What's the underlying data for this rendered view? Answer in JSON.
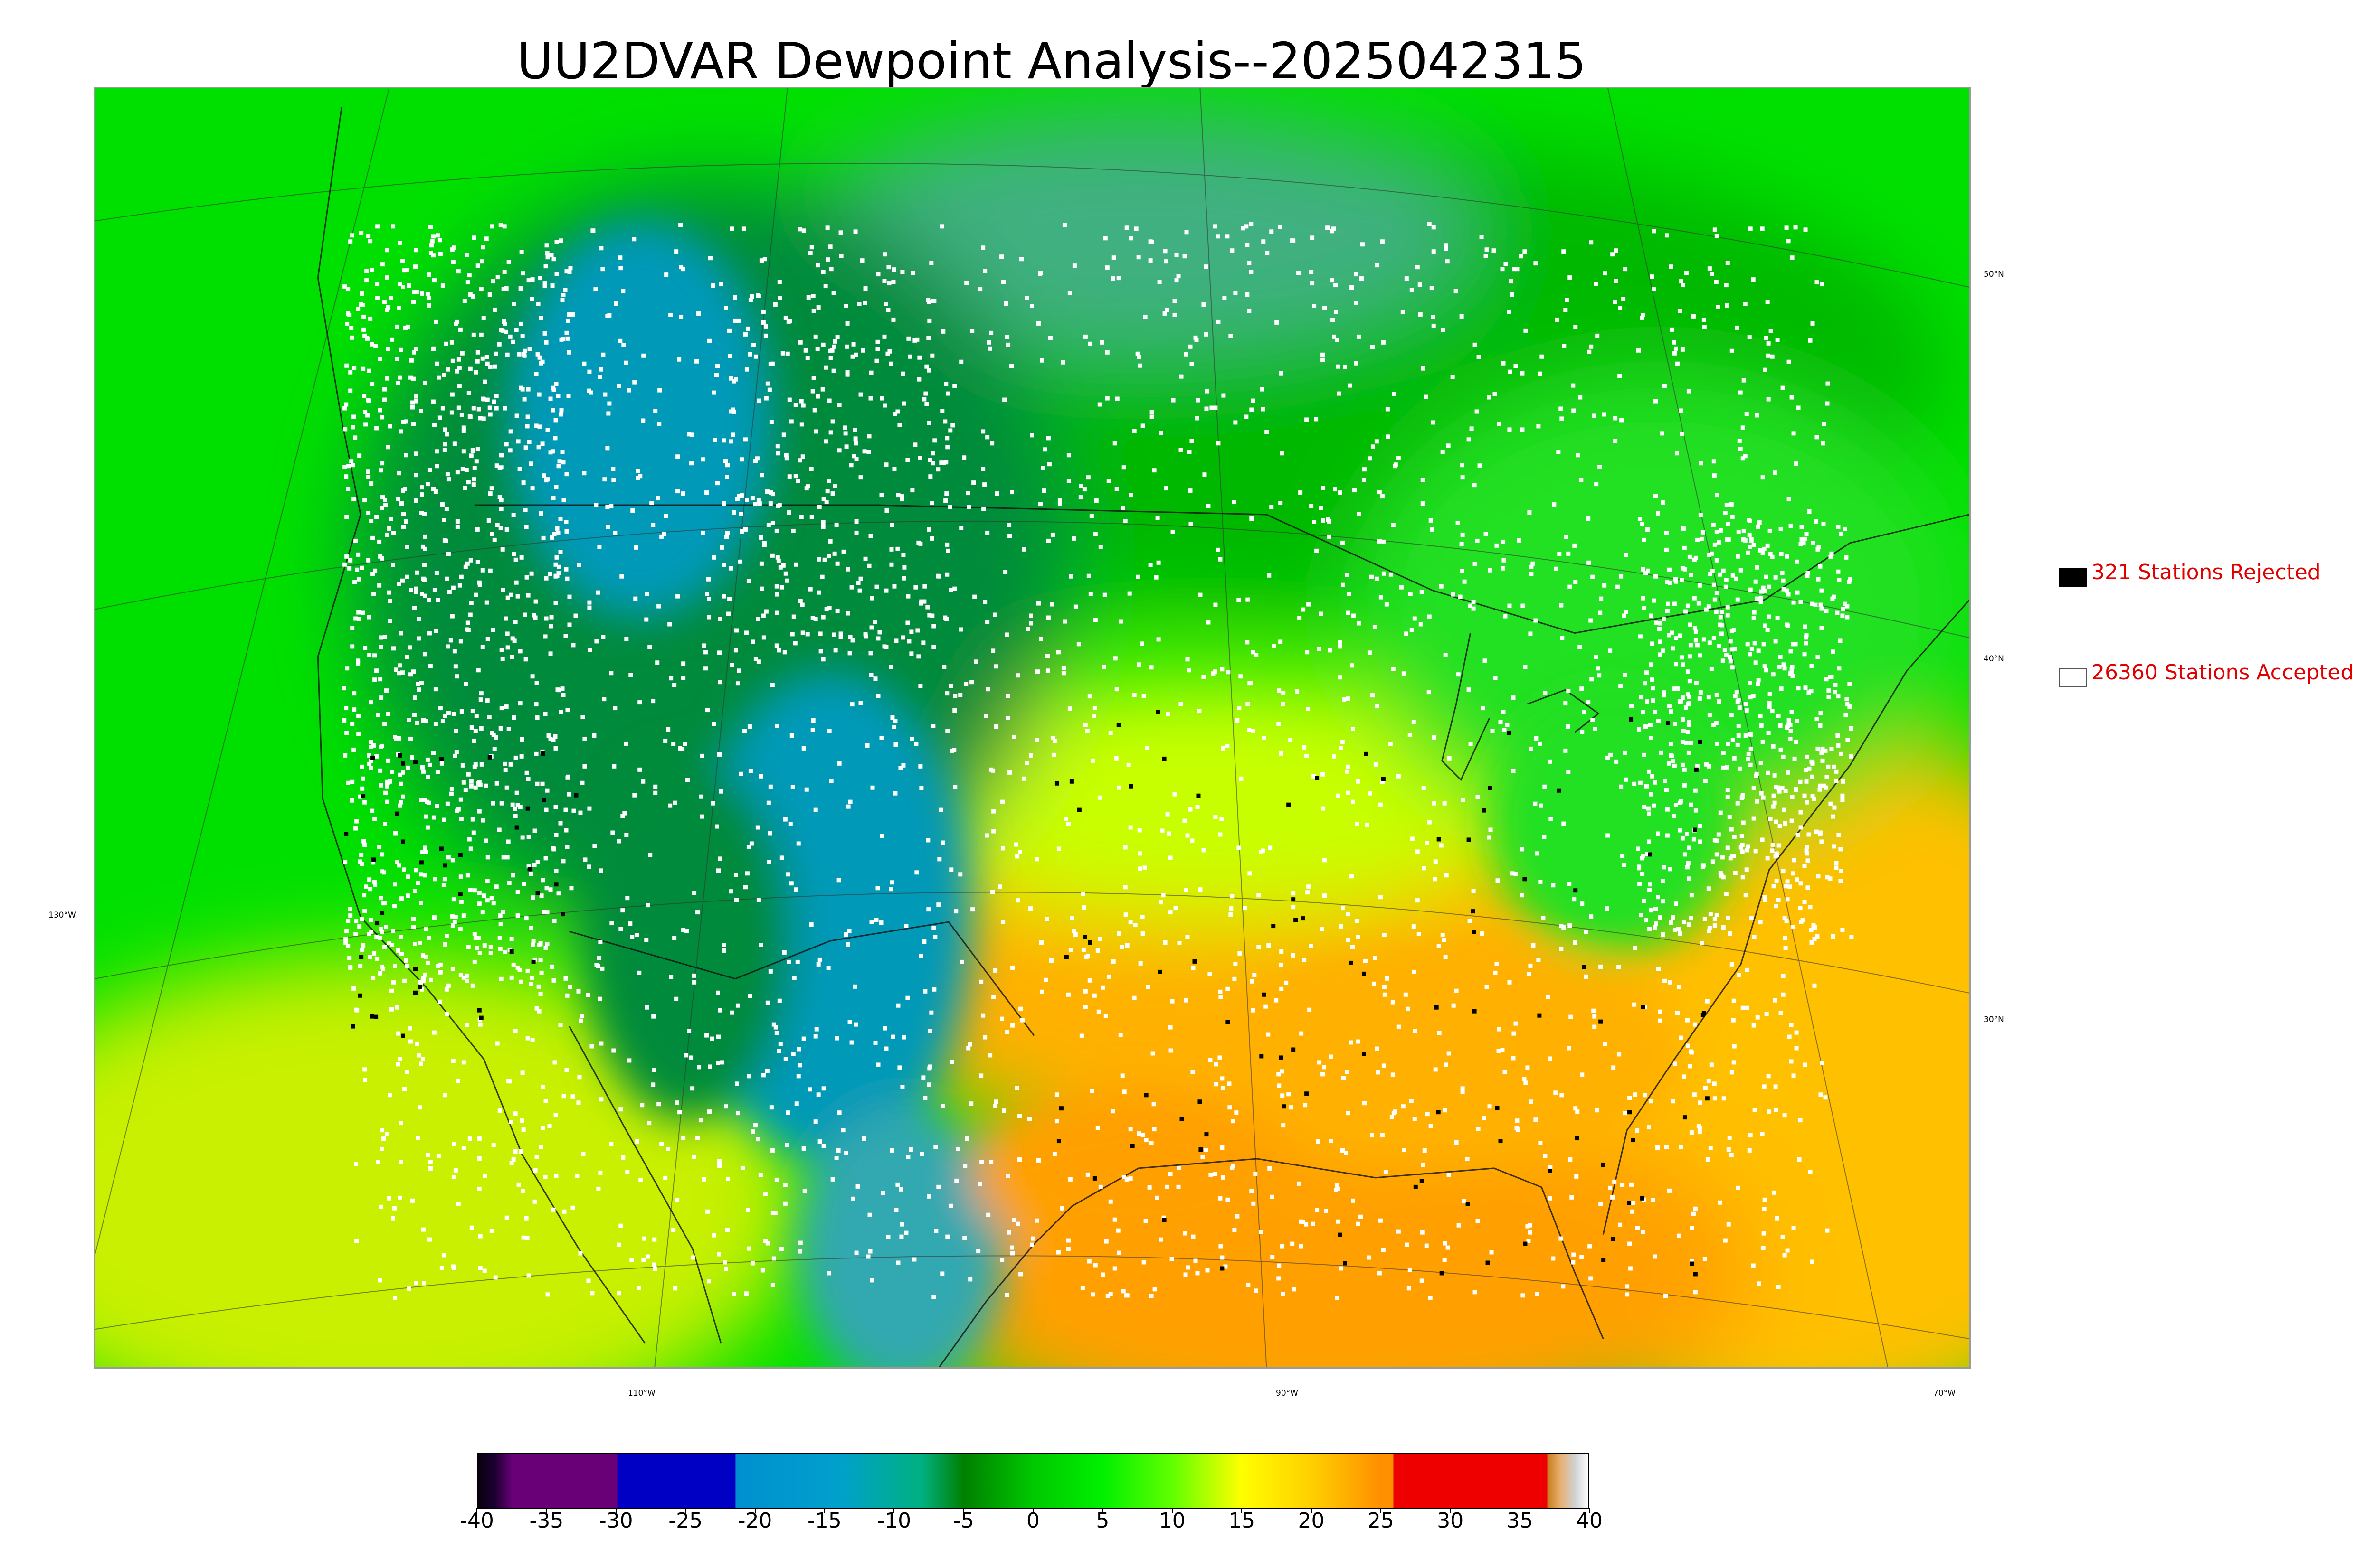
{
  "title": "UU2DVAR Dewpoint Analysis--2025042315",
  "graticule": {
    "lat_labels": [
      "50°N",
      "40°N",
      "30°N"
    ],
    "lon_labels_left": [
      "130°W"
    ],
    "lon_labels_bottom": [
      "110°W",
      "90°W",
      "70°W"
    ]
  },
  "legend": {
    "rejected": {
      "count": "321",
      "label": "321 Stations Rejected",
      "color": "#000000"
    },
    "accepted": {
      "count": "26360",
      "label": "26360 Stations Accepted",
      "color": "#ffffff"
    }
  },
  "colorbar": {
    "ticks": [
      "-40",
      "-35",
      "-30",
      "-25",
      "-20",
      "-15",
      "-10",
      "-5",
      "0",
      "5",
      "10",
      "15",
      "20",
      "25",
      "30",
      "35",
      "40"
    ],
    "min": -40,
    "max": 40,
    "stops": [
      {
        "v": -40,
        "c": "#0a0010"
      },
      {
        "v": -38.8,
        "c": "#1a0030"
      },
      {
        "v": -37.5,
        "c": "#6a0078"
      },
      {
        "v": -30,
        "c": "#6a0078"
      },
      {
        "v": -29.9,
        "c": "#0000c4"
      },
      {
        "v": -21.5,
        "c": "#0000c4"
      },
      {
        "v": -21.4,
        "c": "#0090d0"
      },
      {
        "v": -14,
        "c": "#00a0cc"
      },
      {
        "v": -8,
        "c": "#00b080"
      },
      {
        "v": -5,
        "c": "#008000"
      },
      {
        "v": 0,
        "c": "#00c800"
      },
      {
        "v": 5,
        "c": "#00f000"
      },
      {
        "v": 10,
        "c": "#60ff00"
      },
      {
        "v": 15,
        "c": "#ffff00"
      },
      {
        "v": 20,
        "c": "#ffd000"
      },
      {
        "v": 25,
        "c": "#ff9000"
      },
      {
        "v": 25.9,
        "c": "#ff9000"
      },
      {
        "v": 26,
        "c": "#ee0000"
      },
      {
        "v": 37,
        "c": "#ee0000"
      },
      {
        "v": 37.1,
        "c": "#c88020"
      },
      {
        "v": 38,
        "c": "#e8b070"
      },
      {
        "v": 39,
        "c": "#d0d0d0"
      },
      {
        "v": 40,
        "c": "#ffffff"
      }
    ]
  },
  "field_colors": {
    "ocean_north": "#00e000",
    "ocean_sw": "#c8f000",
    "ocean_se": "#ffc000",
    "gulf": "#ffa000",
    "canada": "#00b800",
    "canada_cold": "#40b080",
    "west_dry": "#008a3a",
    "plains_dry": "#0099b8",
    "south_moist": "#ffb000",
    "midwest": "#c8ff00",
    "east": "#20e020",
    "mexico_dry": "#30a8b0",
    "station_accepted": "#ffffff",
    "station_rejected": "#000000"
  }
}
